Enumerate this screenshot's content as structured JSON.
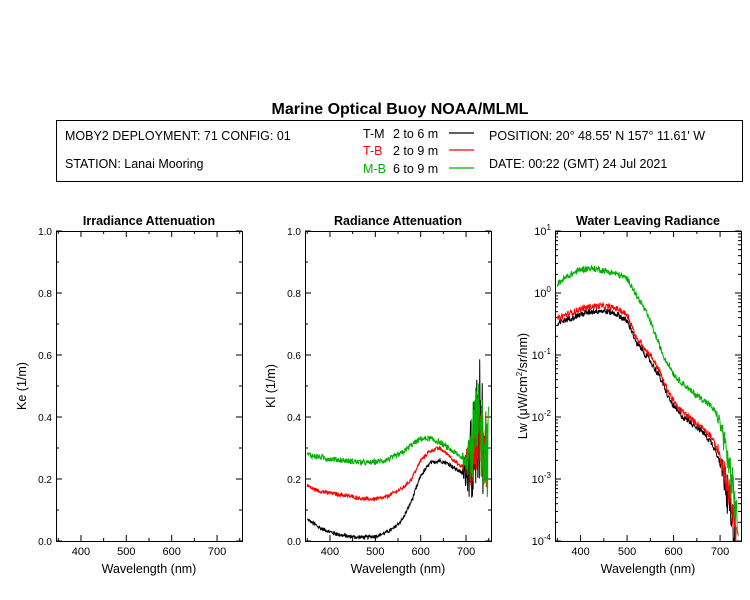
{
  "title": "Marine Optical Buoy NOAA/MLML",
  "header": {
    "deployment": "MOBY2 DEPLOYMENT: 71 CONFIG: 01",
    "station": "STATION: Lanai Mooring",
    "position": "POSITION: 20° 48.55' N   157° 11.61' W",
    "date": "DATE: 00:22 (GMT) 24 Jul 2021",
    "legend": [
      {
        "code": "T-M",
        "range": "2 to 6  m",
        "color": "#000000"
      },
      {
        "code": "T-B",
        "range": "2 to 9  m",
        "color": "#ff0000"
      },
      {
        "code": "M-B",
        "range": "6 to 9  m",
        "color": "#00b000"
      }
    ]
  },
  "chart_data": [
    {
      "type": "line",
      "title": "Irradiance Attenuation",
      "xlabel": "Wavelength (nm)",
      "ylabel": "Ke  (1/m)",
      "xlim": [
        345,
        755
      ],
      "ylim": [
        0.0,
        1.0
      ],
      "xticks": [
        400,
        500,
        600,
        700
      ],
      "xtick_labels": [
        "400",
        "500",
        "600",
        "700"
      ],
      "yticks": [
        0.0,
        0.2,
        0.4,
        0.6,
        0.8,
        1.0
      ],
      "ytick_labels": [
        "0.0",
        "0.2",
        "0.4",
        "0.6",
        "0.8",
        "1.0"
      ],
      "series": []
    },
    {
      "type": "line",
      "title": "Radiance Attenuation",
      "xlabel": "Wavelength (nm)",
      "ylabel": "Kl  (1/m)",
      "xlim": [
        345,
        755
      ],
      "ylim": [
        0.0,
        1.0
      ],
      "xticks": [
        400,
        500,
        600,
        700
      ],
      "xtick_labels": [
        "400",
        "500",
        "600",
        "700"
      ],
      "yticks": [
        0.0,
        0.2,
        0.4,
        0.6,
        0.8,
        1.0
      ],
      "ytick_labels": [
        "0.0",
        "0.2",
        "0.4",
        "0.6",
        "0.8",
        "1.0"
      ],
      "series": [
        {
          "name": "T-M",
          "color": "#000000",
          "noise": 0.006,
          "noise_tail": 0.2,
          "x": [
            350,
            360,
            380,
            400,
            420,
            440,
            460,
            480,
            500,
            520,
            540,
            560,
            580,
            600,
            620,
            640,
            660,
            680,
            690,
            700,
            710,
            720,
            725,
            730,
            735,
            740
          ],
          "y": [
            0.07,
            0.06,
            0.04,
            0.03,
            0.02,
            0.015,
            0.012,
            0.012,
            0.015,
            0.025,
            0.04,
            0.07,
            0.13,
            0.21,
            0.25,
            0.26,
            0.25,
            0.23,
            0.22,
            0.23,
            0.26,
            0.3,
            0.35,
            0.4,
            0.35,
            0.3
          ]
        },
        {
          "name": "T-B",
          "color": "#ff0000",
          "noise": 0.006,
          "noise_tail": 0.14,
          "x": [
            350,
            360,
            380,
            400,
            420,
            440,
            460,
            480,
            500,
            520,
            540,
            560,
            580,
            600,
            620,
            640,
            660,
            680,
            690,
            700,
            710,
            720,
            725,
            730,
            735,
            740,
            745
          ],
          "y": [
            0.18,
            0.17,
            0.16,
            0.155,
            0.15,
            0.145,
            0.14,
            0.135,
            0.135,
            0.14,
            0.155,
            0.17,
            0.2,
            0.26,
            0.29,
            0.3,
            0.28,
            0.25,
            0.24,
            0.25,
            0.27,
            0.3,
            0.33,
            0.35,
            0.32,
            0.3,
            0.28
          ]
        },
        {
          "name": "M-B",
          "color": "#00b000",
          "noise": 0.009,
          "noise_tail": 0.16,
          "x": [
            350,
            360,
            380,
            400,
            420,
            440,
            460,
            480,
            500,
            520,
            540,
            560,
            580,
            600,
            620,
            640,
            660,
            680,
            690,
            700,
            710,
            720,
            725,
            730,
            735,
            740,
            745,
            750
          ],
          "y": [
            0.28,
            0.275,
            0.27,
            0.265,
            0.262,
            0.258,
            0.255,
            0.252,
            0.255,
            0.26,
            0.27,
            0.285,
            0.31,
            0.33,
            0.33,
            0.32,
            0.3,
            0.28,
            0.27,
            0.28,
            0.3,
            0.33,
            0.35,
            0.36,
            0.34,
            0.32,
            0.3,
            0.29
          ]
        }
      ]
    },
    {
      "type": "line",
      "title": "Water Leaving Radiance",
      "xlabel": "Wavelength (nm)",
      "ylabel_parts": [
        "Lw  (",
        "μ",
        "W/cm",
        "2",
        "/sr/nm)"
      ],
      "yscale": "log",
      "xlim": [
        345,
        745
      ],
      "ylim": [
        0.0001,
        10
      ],
      "xticks": [
        400,
        500,
        600,
        700
      ],
      "xtick_labels": [
        "400",
        "500",
        "600",
        "700"
      ],
      "yticks": [
        0.0001,
        0.001,
        0.01,
        0.1,
        1,
        10
      ],
      "ytick_labels": [
        [
          "10",
          "-4"
        ],
        [
          "10",
          "-3"
        ],
        [
          "10",
          "-2"
        ],
        [
          "10",
          "-1"
        ],
        [
          "10",
          "0"
        ],
        [
          "10",
          "1"
        ]
      ],
      "series": [
        {
          "name": "T-M",
          "color": "#000000",
          "noise": 0.05,
          "noise_tail": 0.35,
          "x": [
            350,
            360,
            380,
            400,
            420,
            440,
            460,
            480,
            500,
            510,
            520,
            530,
            540,
            550,
            560,
            570,
            580,
            590,
            600,
            610,
            620,
            640,
            660,
            680,
            690,
            700,
            710,
            720,
            730,
            735
          ],
          "y": [
            0.3,
            0.35,
            0.4,
            0.45,
            0.5,
            0.52,
            0.5,
            0.45,
            0.35,
            0.25,
            0.15,
            0.13,
            0.1,
            0.08,
            0.06,
            0.045,
            0.03,
            0.02,
            0.015,
            0.012,
            0.01,
            0.008,
            0.006,
            0.004,
            0.003,
            0.002,
            0.001,
            0.0004,
            0.00015,
            0.0001
          ]
        },
        {
          "name": "T-B",
          "color": "#ff0000",
          "noise": 0.05,
          "noise_tail": 0.3,
          "x": [
            350,
            360,
            380,
            400,
            420,
            440,
            460,
            480,
            500,
            510,
            520,
            530,
            540,
            550,
            560,
            570,
            580,
            590,
            600,
            610,
            620,
            640,
            660,
            680,
            690,
            700,
            710,
            720,
            730,
            735
          ],
          "y": [
            0.38,
            0.42,
            0.48,
            0.55,
            0.6,
            0.62,
            0.6,
            0.55,
            0.45,
            0.3,
            0.18,
            0.16,
            0.12,
            0.1,
            0.075,
            0.055,
            0.035,
            0.025,
            0.018,
            0.014,
            0.012,
            0.009,
            0.007,
            0.005,
            0.0035,
            0.0025,
            0.0012,
            0.0005,
            0.00018,
            0.0001
          ]
        },
        {
          "name": "M-B",
          "color": "#00b000",
          "noise": 0.05,
          "noise_tail": 0.3,
          "x": [
            350,
            360,
            380,
            400,
            420,
            440,
            460,
            480,
            500,
            510,
            520,
            530,
            540,
            550,
            560,
            570,
            580,
            590,
            600,
            610,
            620,
            640,
            660,
            680,
            690,
            700,
            710,
            720,
            730,
            740
          ],
          "y": [
            1.4,
            1.6,
            2.0,
            2.4,
            2.5,
            2.4,
            2.2,
            2.0,
            1.7,
            1.3,
            0.9,
            0.7,
            0.5,
            0.35,
            0.22,
            0.14,
            0.09,
            0.07,
            0.05,
            0.04,
            0.035,
            0.025,
            0.02,
            0.015,
            0.012,
            0.008,
            0.004,
            0.0015,
            0.0005,
            0.00015
          ]
        }
      ]
    }
  ]
}
